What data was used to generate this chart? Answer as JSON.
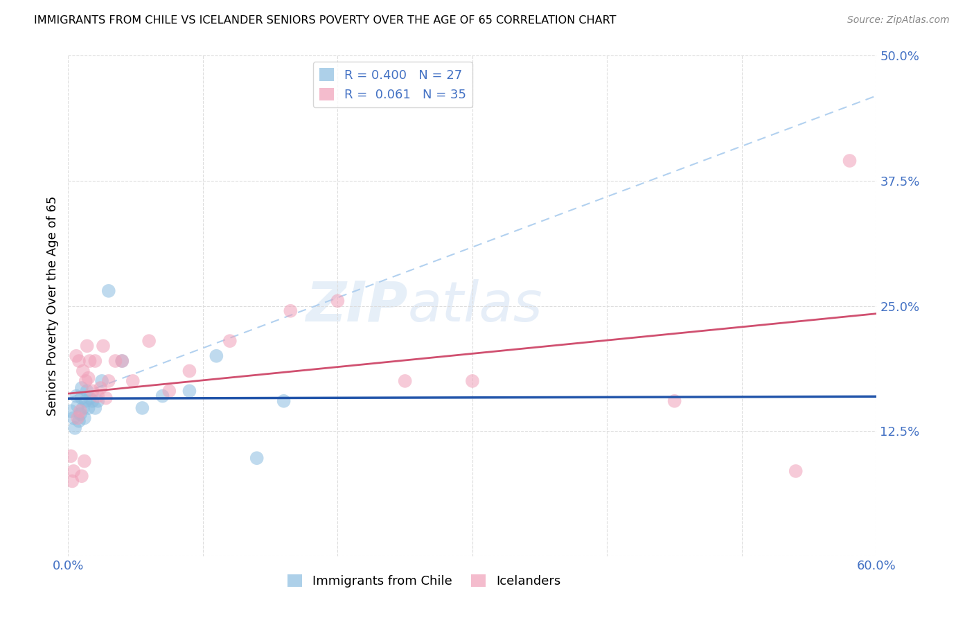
{
  "title": "IMMIGRANTS FROM CHILE VS ICELANDER SENIORS POVERTY OVER THE AGE OF 65 CORRELATION CHART",
  "source": "Source: ZipAtlas.com",
  "ylabel": "Seniors Poverty Over the Age of 65",
  "watermark": "ZIPatlas",
  "xlim": [
    0.0,
    0.6
  ],
  "ylim": [
    0.0,
    0.5
  ],
  "yticks": [
    0.0,
    0.125,
    0.25,
    0.375,
    0.5
  ],
  "xtick_show": [
    0.0,
    0.6
  ],
  "xtick_labels_show": [
    "0.0%",
    "60.0%"
  ],
  "xtick_minor": [
    0.1,
    0.2,
    0.3,
    0.4,
    0.5
  ],
  "chile_color": "#8BBDE0",
  "iceland_color": "#F0A0B8",
  "chile_line_color": "#2255AA",
  "iceland_line_color": "#D05070",
  "dashed_color": "#AACCEE",
  "background_color": "#FFFFFF",
  "grid_color": "#DDDDDD",
  "axis_label_color": "#4472C4",
  "legend_label1": "R = 0.400   N = 27",
  "legend_label2": "R =  0.061   N = 35",
  "bottom_label1": "Immigrants from Chile",
  "bottom_label2": "Icelanders",
  "chile_x": [
    0.002,
    0.004,
    0.005,
    0.006,
    0.007,
    0.008,
    0.009,
    0.01,
    0.01,
    0.011,
    0.012,
    0.013,
    0.014,
    0.015,
    0.016,
    0.018,
    0.02,
    0.022,
    0.025,
    0.03,
    0.04,
    0.055,
    0.07,
    0.09,
    0.11,
    0.14,
    0.16
  ],
  "chile_y": [
    0.145,
    0.138,
    0.128,
    0.16,
    0.15,
    0.135,
    0.142,
    0.158,
    0.168,
    0.148,
    0.138,
    0.155,
    0.165,
    0.148,
    0.158,
    0.155,
    0.148,
    0.155,
    0.175,
    0.265,
    0.195,
    0.148,
    0.16,
    0.165,
    0.2,
    0.098,
    0.155
  ],
  "iceland_x": [
    0.002,
    0.003,
    0.004,
    0.006,
    0.007,
    0.008,
    0.009,
    0.01,
    0.011,
    0.012,
    0.013,
    0.014,
    0.015,
    0.016,
    0.018,
    0.02,
    0.022,
    0.024,
    0.026,
    0.028,
    0.03,
    0.035,
    0.04,
    0.048,
    0.06,
    0.075,
    0.09,
    0.12,
    0.165,
    0.2,
    0.25,
    0.3,
    0.45,
    0.54,
    0.58
  ],
  "iceland_y": [
    0.1,
    0.075,
    0.085,
    0.2,
    0.138,
    0.195,
    0.145,
    0.08,
    0.185,
    0.095,
    0.175,
    0.21,
    0.178,
    0.195,
    0.165,
    0.195,
    0.16,
    0.168,
    0.21,
    0.158,
    0.175,
    0.195,
    0.195,
    0.175,
    0.215,
    0.165,
    0.185,
    0.215,
    0.245,
    0.255,
    0.175,
    0.175,
    0.155,
    0.085,
    0.395
  ]
}
